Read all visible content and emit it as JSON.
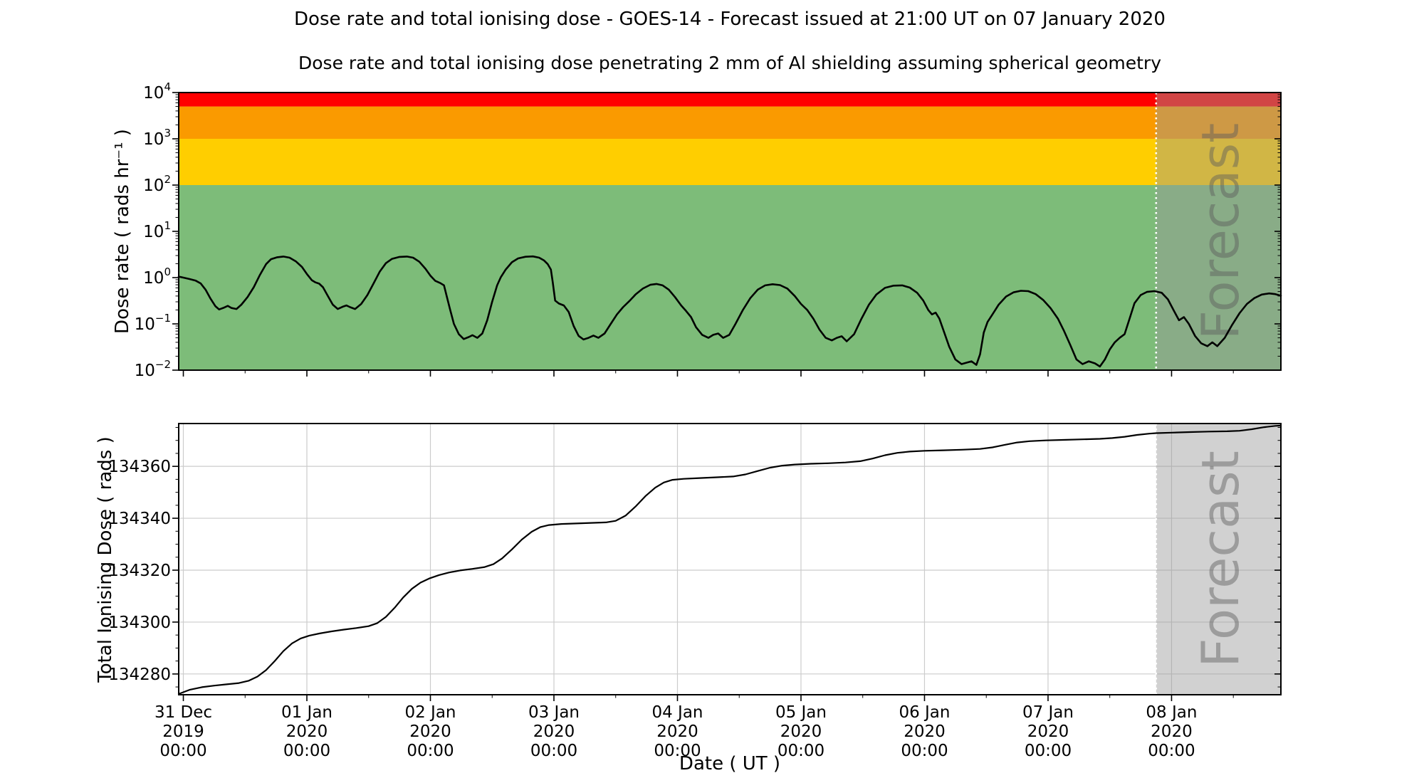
{
  "header": {
    "title": "Dose rate and total ionising dose - GOES-14 - Forecast issued at 21:00 UT on 07 January 2020",
    "subtitle": "Dose rate and total ionising dose penetrating 2 mm of Al shielding assuming spherical geometry"
  },
  "x_axis": {
    "label": "Date ( UT )",
    "start_days": -0.0375,
    "end_days": 8.885,
    "minor_tick_interval_days": 0.5,
    "tick_labels": [
      {
        "day": 0,
        "lines": [
          "31 Dec",
          "2019",
          "00:00"
        ]
      },
      {
        "day": 1,
        "lines": [
          "01 Jan",
          "2020",
          "00:00"
        ]
      },
      {
        "day": 2,
        "lines": [
          "02 Jan",
          "2020",
          "00:00"
        ]
      },
      {
        "day": 3,
        "lines": [
          "03 Jan",
          "2020",
          "00:00"
        ]
      },
      {
        "day": 4,
        "lines": [
          "04 Jan",
          "2020",
          "00:00"
        ]
      },
      {
        "day": 5,
        "lines": [
          "05 Jan",
          "2020",
          "00:00"
        ]
      },
      {
        "day": 6,
        "lines": [
          "06 Jan",
          "2020",
          "00:00"
        ]
      },
      {
        "day": 7,
        "lines": [
          "07 Jan",
          "2020",
          "00:00"
        ]
      },
      {
        "day": 8,
        "lines": [
          "08 Jan",
          "2020",
          "00:00"
        ]
      }
    ]
  },
  "forecast": {
    "label": "Forecast",
    "start_day": 7.875,
    "overlay_color": "rgba(153,153,153,0.45)",
    "divider_color": "#ffffff",
    "watermark_color": "rgba(90,90,90,0.45)"
  },
  "colors": {
    "curve": "#000000",
    "grid": "#cccccc",
    "band_red": "#ff0000",
    "band_orange": "#fa9a00",
    "band_yellow": "#ffce00",
    "band_green": "#7dbc79"
  },
  "chart_data": [
    {
      "type": "line",
      "name": "dose-rate",
      "ylabel": "Dose rate ( rads hr⁻¹ )",
      "yscale": "log",
      "ylim": [
        0.01,
        10000
      ],
      "grid": false,
      "y_major_ticks": [
        {
          "value": 10000,
          "sup": "4"
        },
        {
          "value": 1000,
          "sup": "3"
        },
        {
          "value": 100,
          "sup": "2"
        },
        {
          "value": 10,
          "sup": "1"
        },
        {
          "value": 1,
          "sup": "0"
        },
        {
          "value": 0.1,
          "sup": "−1"
        },
        {
          "value": 0.01,
          "sup": "−2"
        }
      ],
      "bands": [
        {
          "name": "green-band",
          "from": 0.01,
          "to": 100,
          "color_key": "band_green"
        },
        {
          "name": "yellow-band",
          "from": 100,
          "to": 1000,
          "color_key": "band_yellow"
        },
        {
          "name": "orange-band",
          "from": 1000,
          "to": 5000,
          "color_key": "band_orange"
        },
        {
          "name": "red-band",
          "from": 5000,
          "to": 10000,
          "color_key": "band_red"
        }
      ],
      "points": [
        [
          -0.0375,
          1.05
        ],
        [
          0,
          1.0
        ],
        [
          0.05,
          0.93
        ],
        [
          0.1,
          0.86
        ],
        [
          0.14,
          0.75
        ],
        [
          0.18,
          0.55
        ],
        [
          0.22,
          0.35
        ],
        [
          0.26,
          0.24
        ],
        [
          0.29,
          0.205
        ],
        [
          0.33,
          0.225
        ],
        [
          0.36,
          0.245
        ],
        [
          0.39,
          0.22
        ],
        [
          0.43,
          0.21
        ],
        [
          0.47,
          0.26
        ],
        [
          0.52,
          0.38
        ],
        [
          0.57,
          0.62
        ],
        [
          0.62,
          1.15
        ],
        [
          0.67,
          1.95
        ],
        [
          0.71,
          2.5
        ],
        [
          0.76,
          2.75
        ],
        [
          0.81,
          2.85
        ],
        [
          0.86,
          2.7
        ],
        [
          0.91,
          2.25
        ],
        [
          0.96,
          1.7
        ],
        [
          1.0,
          1.2
        ],
        [
          1.04,
          0.88
        ],
        [
          1.07,
          0.79
        ],
        [
          1.1,
          0.74
        ],
        [
          1.13,
          0.62
        ],
        [
          1.17,
          0.4
        ],
        [
          1.21,
          0.26
        ],
        [
          1.25,
          0.21
        ],
        [
          1.29,
          0.235
        ],
        [
          1.32,
          0.25
        ],
        [
          1.35,
          0.23
        ],
        [
          1.39,
          0.21
        ],
        [
          1.44,
          0.27
        ],
        [
          1.49,
          0.42
        ],
        [
          1.54,
          0.75
        ],
        [
          1.59,
          1.35
        ],
        [
          1.64,
          2.05
        ],
        [
          1.69,
          2.55
        ],
        [
          1.75,
          2.8
        ],
        [
          1.81,
          2.85
        ],
        [
          1.86,
          2.7
        ],
        [
          1.91,
          2.2
        ],
        [
          1.96,
          1.55
        ],
        [
          2.0,
          1.1
        ],
        [
          2.04,
          0.85
        ],
        [
          2.08,
          0.76
        ],
        [
          2.11,
          0.68
        ],
        [
          2.13,
          0.42
        ],
        [
          2.16,
          0.2
        ],
        [
          2.19,
          0.1
        ],
        [
          2.23,
          0.06
        ],
        [
          2.27,
          0.047
        ],
        [
          2.31,
          0.052
        ],
        [
          2.34,
          0.057
        ],
        [
          2.38,
          0.05
        ],
        [
          2.42,
          0.062
        ],
        [
          2.46,
          0.12
        ],
        [
          2.5,
          0.3
        ],
        [
          2.54,
          0.68
        ],
        [
          2.57,
          1.02
        ],
        [
          2.61,
          1.5
        ],
        [
          2.66,
          2.15
        ],
        [
          2.71,
          2.6
        ],
        [
          2.77,
          2.82
        ],
        [
          2.83,
          2.87
        ],
        [
          2.88,
          2.7
        ],
        [
          2.92,
          2.35
        ],
        [
          2.95,
          1.95
        ],
        [
          2.975,
          1.5
        ],
        [
          2.99,
          0.8
        ],
        [
          3.01,
          0.32
        ],
        [
          3.04,
          0.275
        ],
        [
          3.08,
          0.25
        ],
        [
          3.12,
          0.18
        ],
        [
          3.16,
          0.09
        ],
        [
          3.2,
          0.055
        ],
        [
          3.24,
          0.046
        ],
        [
          3.28,
          0.05
        ],
        [
          3.32,
          0.056
        ],
        [
          3.36,
          0.05
        ],
        [
          3.41,
          0.062
        ],
        [
          3.46,
          0.1
        ],
        [
          3.51,
          0.16
        ],
        [
          3.56,
          0.23
        ],
        [
          3.61,
          0.31
        ],
        [
          3.66,
          0.43
        ],
        [
          3.72,
          0.58
        ],
        [
          3.78,
          0.7
        ],
        [
          3.83,
          0.73
        ],
        [
          3.88,
          0.68
        ],
        [
          3.93,
          0.55
        ],
        [
          3.98,
          0.38
        ],
        [
          4.03,
          0.25
        ],
        [
          4.07,
          0.19
        ],
        [
          4.11,
          0.14
        ],
        [
          4.15,
          0.085
        ],
        [
          4.2,
          0.058
        ],
        [
          4.25,
          0.05
        ],
        [
          4.29,
          0.058
        ],
        [
          4.33,
          0.062
        ],
        [
          4.37,
          0.05
        ],
        [
          4.42,
          0.058
        ],
        [
          4.47,
          0.1
        ],
        [
          4.53,
          0.2
        ],
        [
          4.59,
          0.36
        ],
        [
          4.65,
          0.55
        ],
        [
          4.71,
          0.68
        ],
        [
          4.77,
          0.72
        ],
        [
          4.83,
          0.69
        ],
        [
          4.89,
          0.58
        ],
        [
          4.95,
          0.4
        ],
        [
          5.0,
          0.27
        ],
        [
          5.05,
          0.2
        ],
        [
          5.1,
          0.13
        ],
        [
          5.15,
          0.075
        ],
        [
          5.2,
          0.05
        ],
        [
          5.25,
          0.044
        ],
        [
          5.29,
          0.05
        ],
        [
          5.33,
          0.054
        ],
        [
          5.37,
          0.042
        ],
        [
          5.43,
          0.06
        ],
        [
          5.49,
          0.13
        ],
        [
          5.55,
          0.26
        ],
        [
          5.61,
          0.43
        ],
        [
          5.68,
          0.6
        ],
        [
          5.75,
          0.67
        ],
        [
          5.82,
          0.68
        ],
        [
          5.88,
          0.61
        ],
        [
          5.94,
          0.47
        ],
        [
          5.99,
          0.32
        ],
        [
          6.03,
          0.2
        ],
        [
          6.06,
          0.16
        ],
        [
          6.09,
          0.175
        ],
        [
          6.12,
          0.13
        ],
        [
          6.16,
          0.065
        ],
        [
          6.2,
          0.032
        ],
        [
          6.25,
          0.017
        ],
        [
          6.3,
          0.0135
        ],
        [
          6.34,
          0.0145
        ],
        [
          6.38,
          0.0155
        ],
        [
          6.42,
          0.013
        ],
        [
          6.45,
          0.022
        ],
        [
          6.48,
          0.065
        ],
        [
          6.51,
          0.11
        ],
        [
          6.55,
          0.16
        ],
        [
          6.6,
          0.26
        ],
        [
          6.66,
          0.39
        ],
        [
          6.72,
          0.48
        ],
        [
          6.78,
          0.52
        ],
        [
          6.84,
          0.51
        ],
        [
          6.9,
          0.44
        ],
        [
          6.96,
          0.33
        ],
        [
          7.02,
          0.22
        ],
        [
          7.08,
          0.13
        ],
        [
          7.13,
          0.07
        ],
        [
          7.18,
          0.035
        ],
        [
          7.23,
          0.017
        ],
        [
          7.28,
          0.0135
        ],
        [
          7.33,
          0.0155
        ],
        [
          7.38,
          0.014
        ],
        [
          7.42,
          0.012
        ],
        [
          7.46,
          0.017
        ],
        [
          7.5,
          0.028
        ],
        [
          7.54,
          0.04
        ],
        [
          7.58,
          0.05
        ],
        [
          7.62,
          0.06
        ],
        [
          7.66,
          0.13
        ],
        [
          7.7,
          0.28
        ],
        [
          7.75,
          0.42
        ],
        [
          7.8,
          0.49
        ],
        [
          7.86,
          0.51
        ],
        [
          7.92,
          0.47
        ],
        [
          7.97,
          0.34
        ],
        [
          8.02,
          0.19
        ],
        [
          8.06,
          0.12
        ],
        [
          8.1,
          0.14
        ],
        [
          8.14,
          0.1
        ],
        [
          8.19,
          0.055
        ],
        [
          8.24,
          0.038
        ],
        [
          8.29,
          0.033
        ],
        [
          8.33,
          0.04
        ],
        [
          8.37,
          0.033
        ],
        [
          8.43,
          0.05
        ],
        [
          8.49,
          0.095
        ],
        [
          8.55,
          0.17
        ],
        [
          8.61,
          0.27
        ],
        [
          8.67,
          0.36
        ],
        [
          8.73,
          0.43
        ],
        [
          8.79,
          0.455
        ],
        [
          8.84,
          0.44
        ],
        [
          8.885,
          0.405
        ]
      ]
    },
    {
      "type": "line",
      "name": "total-ionising-dose",
      "ylabel": "Total Ionising Dose ( rads )",
      "yscale": "linear",
      "ylim": [
        134272,
        134376.5
      ],
      "grid": true,
      "y_major_ticks": [
        134280,
        134300,
        134320,
        134340,
        134360
      ],
      "y_minor_tick_interval": 5,
      "points": [
        [
          -0.0375,
          134272.3
        ],
        [
          0.05,
          134273.9
        ],
        [
          0.15,
          134274.9
        ],
        [
          0.25,
          134275.5
        ],
        [
          0.35,
          134276.0
        ],
        [
          0.45,
          134276.5
        ],
        [
          0.53,
          134277.4
        ],
        [
          0.6,
          134279.0
        ],
        [
          0.67,
          134281.5
        ],
        [
          0.74,
          134285.0
        ],
        [
          0.81,
          134288.8
        ],
        [
          0.88,
          134291.8
        ],
        [
          0.95,
          134293.7
        ],
        [
          1.02,
          134294.8
        ],
        [
          1.1,
          134295.6
        ],
        [
          1.2,
          134296.4
        ],
        [
          1.3,
          134297.1
        ],
        [
          1.4,
          134297.7
        ],
        [
          1.5,
          134298.4
        ],
        [
          1.57,
          134299.6
        ],
        [
          1.64,
          134302.0
        ],
        [
          1.71,
          134305.5
        ],
        [
          1.78,
          134309.5
        ],
        [
          1.85,
          134312.8
        ],
        [
          1.92,
          134315.2
        ],
        [
          1.99,
          134316.8
        ],
        [
          2.07,
          134318.1
        ],
        [
          2.15,
          134319.1
        ],
        [
          2.24,
          134319.9
        ],
        [
          2.34,
          134320.5
        ],
        [
          2.44,
          134321.2
        ],
        [
          2.51,
          134322.3
        ],
        [
          2.58,
          134324.5
        ],
        [
          2.66,
          134328.0
        ],
        [
          2.74,
          134331.8
        ],
        [
          2.82,
          134334.8
        ],
        [
          2.89,
          134336.6
        ],
        [
          2.96,
          134337.4
        ],
        [
          3.06,
          134337.8
        ],
        [
          3.18,
          134338.0
        ],
        [
          3.3,
          134338.2
        ],
        [
          3.42,
          134338.4
        ],
        [
          3.5,
          134339.0
        ],
        [
          3.58,
          134341.0
        ],
        [
          3.66,
          134344.5
        ],
        [
          3.74,
          134348.5
        ],
        [
          3.82,
          134351.8
        ],
        [
          3.89,
          134353.8
        ],
        [
          3.96,
          134354.8
        ],
        [
          4.05,
          134355.2
        ],
        [
          4.18,
          134355.5
        ],
        [
          4.32,
          134355.8
        ],
        [
          4.45,
          134356.1
        ],
        [
          4.55,
          134356.9
        ],
        [
          4.65,
          134358.2
        ],
        [
          4.75,
          134359.5
        ],
        [
          4.85,
          134360.3
        ],
        [
          4.95,
          134360.7
        ],
        [
          5.08,
          134361.0
        ],
        [
          5.22,
          134361.2
        ],
        [
          5.36,
          134361.5
        ],
        [
          5.48,
          134362.0
        ],
        [
          5.58,
          134363.0
        ],
        [
          5.68,
          134364.3
        ],
        [
          5.78,
          134365.2
        ],
        [
          5.88,
          134365.7
        ],
        [
          6.0,
          134366.0
        ],
        [
          6.15,
          134366.2
        ],
        [
          6.3,
          134366.4
        ],
        [
          6.45,
          134366.7
        ],
        [
          6.55,
          134367.3
        ],
        [
          6.65,
          134368.3
        ],
        [
          6.75,
          134369.2
        ],
        [
          6.85,
          134369.7
        ],
        [
          6.98,
          134370.0
        ],
        [
          7.12,
          134370.2
        ],
        [
          7.28,
          134370.4
        ],
        [
          7.42,
          134370.6
        ],
        [
          7.52,
          134370.9
        ],
        [
          7.62,
          134371.4
        ],
        [
          7.72,
          134372.1
        ],
        [
          7.82,
          134372.6
        ],
        [
          7.875,
          134372.8
        ],
        [
          8.0,
          134373.0
        ],
        [
          8.15,
          134373.2
        ],
        [
          8.3,
          134373.4
        ],
        [
          8.45,
          134373.5
        ],
        [
          8.55,
          134373.7
        ],
        [
          8.65,
          134374.3
        ],
        [
          8.75,
          134375.1
        ],
        [
          8.84,
          134375.6
        ],
        [
          8.885,
          134375.7
        ]
      ]
    }
  ]
}
